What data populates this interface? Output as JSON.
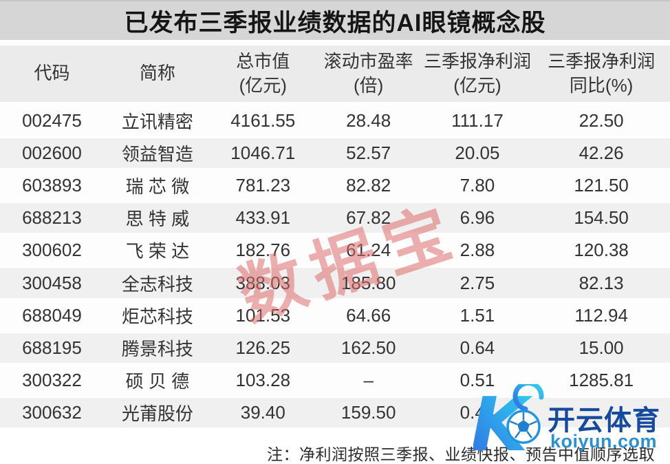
{
  "title": "已发布三季报业绩数据的AI眼镜概念股",
  "table": {
    "headers": [
      {
        "line1": "代码",
        "line2": ""
      },
      {
        "line1": "简称",
        "line2": ""
      },
      {
        "line1": "总市值",
        "line2": "(亿元)"
      },
      {
        "line1": "滚动市盈率",
        "line2": "(倍)"
      },
      {
        "line1": "三季报净利润",
        "line2": "(亿元)"
      },
      {
        "line1": "三季报净利润",
        "line2": "同比(%)"
      }
    ],
    "rows": [
      [
        "002475",
        "立讯精密",
        "4161.55",
        "28.48",
        "111.17",
        "22.50"
      ],
      [
        "002600",
        "领益智造",
        "1046.71",
        "52.57",
        "20.05",
        "42.26"
      ],
      [
        "603893",
        "瑞 芯 微",
        "781.23",
        "82.82",
        "7.80",
        "121.50"
      ],
      [
        "688213",
        "思 特 威",
        "433.91",
        "67.82",
        "6.96",
        "154.50"
      ],
      [
        "300602",
        "飞 荣 达",
        "182.76",
        "61.24",
        "2.88",
        "120.38"
      ],
      [
        "300458",
        "全志科技",
        "388.03",
        "185.80",
        "2.75",
        "82.13"
      ],
      [
        "688049",
        "炬芯科技",
        "101.53",
        "64.66",
        "1.51",
        "112.94"
      ],
      [
        "688195",
        "腾景科技",
        "126.25",
        "162.50",
        "0.64",
        "15.00"
      ],
      [
        "300322",
        "硕 贝 德",
        "103.28",
        "–",
        "0.51",
        "1285.81"
      ],
      [
        "300632",
        "光莆股份",
        "39.40",
        "159.50",
        "0.44",
        ""
      ]
    ]
  },
  "note": "注：净利润按照三季报、业绩快报、预告中值顺序选取",
  "watermark": {
    "text": "数据宝",
    "color": "#de6c6c"
  },
  "logo": {
    "brand": "开云体育",
    "domain": "koiyun.com",
    "brand_color": "#164a9c",
    "domain_color": "#2b8fd6",
    "gradient_start": "#2fd4f0",
    "gradient_end": "#2f6fe4"
  }
}
